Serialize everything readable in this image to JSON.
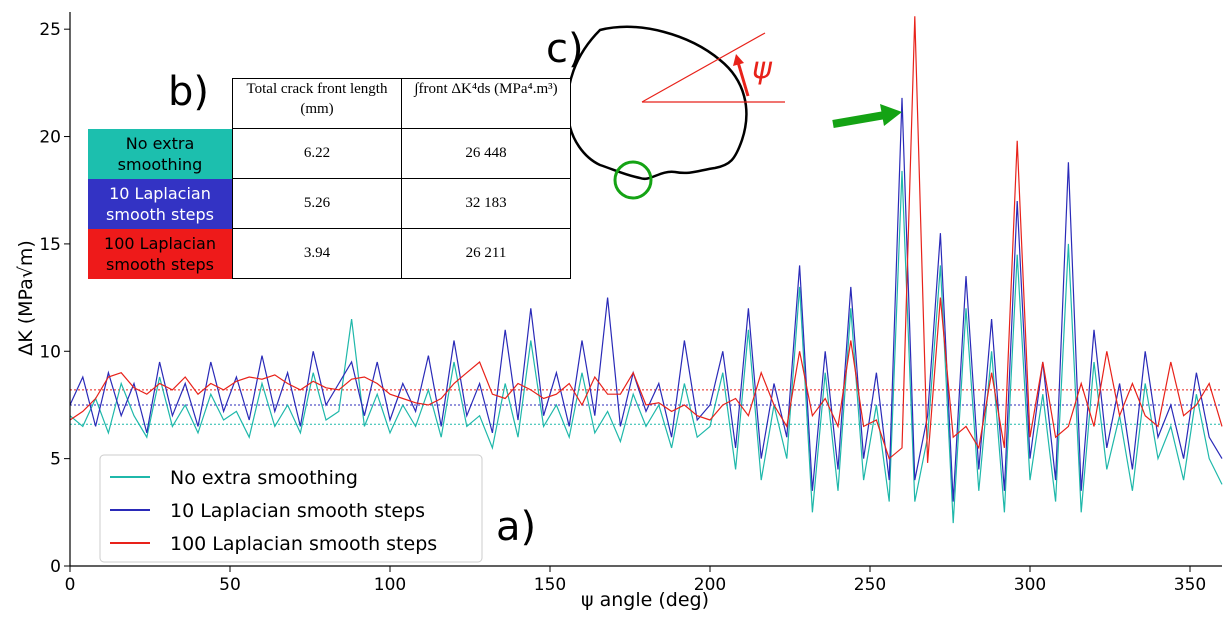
{
  "chart_data": {
    "type": "line",
    "xlabel": "ψ angle (deg)",
    "ylabel": "ΔK  (MPa√m)",
    "xlim": [
      0,
      360
    ],
    "xticks": [
      0,
      50,
      100,
      150,
      200,
      250,
      300,
      350
    ],
    "ylim": [
      0,
      25.8
    ],
    "yticks": [
      0,
      5,
      10,
      15,
      20,
      25
    ],
    "legend": "lower left",
    "x": [
      0,
      4,
      8,
      12,
      16,
      20,
      24,
      28,
      32,
      36,
      40,
      44,
      48,
      52,
      56,
      60,
      64,
      68,
      72,
      76,
      80,
      84,
      88,
      92,
      96,
      100,
      104,
      108,
      112,
      116,
      120,
      124,
      128,
      132,
      136,
      140,
      144,
      148,
      152,
      156,
      160,
      164,
      168,
      172,
      176,
      180,
      184,
      188,
      192,
      196,
      200,
      204,
      208,
      212,
      216,
      220,
      224,
      228,
      232,
      236,
      240,
      244,
      248,
      252,
      256,
      260,
      264,
      268,
      272,
      276,
      280,
      284,
      288,
      292,
      296,
      300,
      304,
      308,
      312,
      316,
      320,
      324,
      328,
      332,
      336,
      340,
      344,
      348,
      352,
      356,
      360
    ],
    "series": [
      {
        "name": "No extra smoothing",
        "color": "#1fb8aa",
        "mean": 6.6,
        "values": [
          7.0,
          6.5,
          7.8,
          6.2,
          8.5,
          7.0,
          6.0,
          8.8,
          6.5,
          7.5,
          6.2,
          8.0,
          6.8,
          7.2,
          6.0,
          8.5,
          6.5,
          7.5,
          6.2,
          9.0,
          6.8,
          7.2,
          11.5,
          6.5,
          8.0,
          6.2,
          7.5,
          6.5,
          8.2,
          6.0,
          9.5,
          6.5,
          7.0,
          5.5,
          8.5,
          6.0,
          10.5,
          6.5,
          7.5,
          6.0,
          9.0,
          6.2,
          7.2,
          5.8,
          8.0,
          6.5,
          7.5,
          5.5,
          8.5,
          6.0,
          6.5,
          9.0,
          4.5,
          11.0,
          4.0,
          7.5,
          5.0,
          13.0,
          2.5,
          9.0,
          3.5,
          12.0,
          4.0,
          7.5,
          3.0,
          18.4,
          3.0,
          6.0,
          14.0,
          2.0,
          12.0,
          3.5,
          10.0,
          2.5,
          14.5,
          4.0,
          8.0,
          3.0,
          15.0,
          2.5,
          9.5,
          4.5,
          7.0,
          3.5,
          8.5,
          5.0,
          6.5,
          4.0,
          8.0,
          5.0,
          3.8
        ]
      },
      {
        "name": "10 Laplacian smooth steps",
        "color": "#2a2ab8",
        "mean": 7.5,
        "values": [
          7.5,
          8.8,
          6.5,
          9.0,
          7.0,
          8.5,
          6.2,
          9.5,
          7.0,
          8.5,
          6.5,
          9.5,
          7.2,
          8.8,
          6.8,
          9.8,
          7.2,
          9.0,
          6.5,
          10.0,
          7.5,
          8.5,
          9.5,
          7.0,
          9.5,
          6.8,
          8.5,
          7.2,
          9.8,
          6.5,
          10.5,
          7.0,
          8.5,
          6.2,
          11.0,
          6.8,
          12.0,
          7.0,
          9.0,
          6.5,
          10.5,
          7.0,
          12.5,
          6.5,
          9.0,
          7.2,
          8.5,
          6.0,
          10.5,
          6.8,
          7.5,
          10.0,
          5.5,
          12.0,
          5.0,
          8.5,
          6.0,
          14.0,
          3.5,
          10.0,
          4.5,
          13.0,
          5.0,
          9.0,
          4.0,
          21.8,
          4.0,
          7.0,
          15.5,
          3.0,
          13.5,
          4.5,
          11.5,
          3.5,
          17.0,
          5.0,
          9.5,
          4.0,
          18.8,
          3.5,
          11.0,
          5.5,
          8.5,
          4.5,
          10.0,
          6.0,
          7.5,
          5.0,
          9.0,
          6.0,
          5.0
        ]
      },
      {
        "name": "100 Laplacian smooth steps",
        "color": "#e8221a",
        "mean": 8.2,
        "values": [
          6.8,
          7.2,
          7.8,
          8.8,
          9.0,
          8.3,
          8.0,
          8.5,
          8.2,
          8.8,
          8.0,
          8.5,
          8.2,
          8.6,
          8.8,
          8.7,
          8.9,
          8.5,
          8.2,
          8.6,
          8.3,
          8.2,
          8.7,
          8.8,
          8.5,
          8.0,
          7.8,
          7.6,
          7.5,
          7.8,
          8.5,
          9.0,
          9.5,
          8.0,
          7.8,
          8.5,
          8.2,
          7.8,
          8.0,
          8.5,
          7.5,
          8.8,
          8.0,
          8.0,
          9.0,
          7.5,
          7.6,
          7.2,
          7.5,
          7.0,
          6.8,
          7.5,
          7.8,
          7.0,
          9.0,
          7.5,
          6.5,
          10.0,
          7.0,
          7.8,
          6.5,
          10.5,
          6.5,
          6.8,
          5.0,
          5.5,
          25.6,
          4.8,
          12.5,
          6.0,
          6.5,
          5.5,
          9.0,
          5.5,
          19.8,
          6.0,
          9.5,
          6.0,
          6.5,
          8.5,
          6.5,
          10.0,
          7.0,
          8.5,
          7.0,
          6.5,
          9.5,
          7.0,
          7.5,
          8.5,
          6.5
        ]
      }
    ],
    "panel_labels": [
      "a)",
      "b)",
      "c)"
    ],
    "inset_angle_label": "ψ",
    "table": {
      "headers": [
        "Total crack front length (mm)",
        "∫front ΔK⁴ds (MPa⁴.m³)"
      ],
      "rows": [
        {
          "label": "No extra smoothing",
          "color": "#1cbfae",
          "cells": [
            "6.22",
            "26 448"
          ]
        },
        {
          "label": "10 Laplacian smooth steps",
          "color": "#3333c4",
          "cells": [
            "5.26",
            "32 183"
          ]
        },
        {
          "label": "100 Laplacian smooth steps",
          "color": "#ee1a1a",
          "cells": [
            "3.94",
            "26 211"
          ]
        }
      ]
    }
  }
}
